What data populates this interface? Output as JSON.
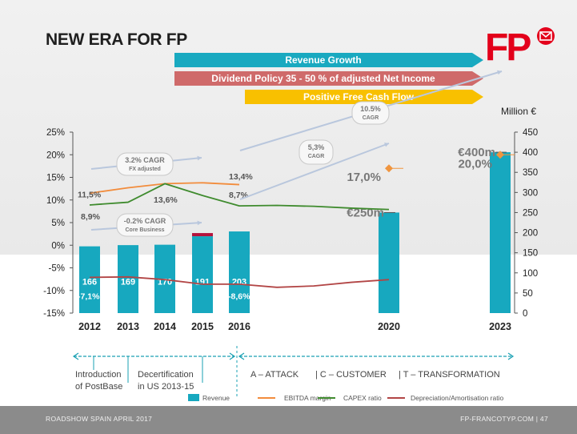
{
  "title": "NEW ERA FOR FP",
  "banners": {
    "revenue_growth": "Revenue Growth",
    "dividend_policy": "Dividend Policy 35 - 50 % of adjusted Net Income",
    "free_cash_flow": "Positive Free Cash Flow"
  },
  "logo": {
    "text": "FP",
    "color": "#e3001b"
  },
  "unit_label": "Million €",
  "chart_data": {
    "type": "bar",
    "categories": [
      "2012",
      "2013",
      "2014",
      "2015",
      "2016",
      "2020",
      "2023"
    ],
    "revenue": [
      166,
      169,
      170,
      191,
      203,
      250,
      400
    ],
    "revenue_labels": [
      "166",
      "169",
      "170",
      "191",
      "203",
      "€250m",
      "€400m"
    ],
    "revenue_2015_top_segment": 8,
    "y_right_range": [
      0,
      450
    ],
    "y_right_ticks": [
      "0",
      "50",
      "100",
      "150",
      "200",
      "250",
      "300",
      "350",
      "400",
      "450"
    ],
    "y_left_range": [
      -15,
      25
    ],
    "y_left_ticks": [
      "25%",
      "20%",
      "15%",
      "10%",
      "5%",
      "0%",
      "-5%",
      "-10%",
      "-15%"
    ],
    "ebitda_margin": {
      "x": [
        2012,
        2013,
        2014,
        2015,
        2016
      ],
      "values": [
        11.5,
        12.7,
        13.6,
        13.8,
        13.4
      ]
    },
    "capex_ratio": {
      "x": [
        2012,
        2013,
        2014,
        2015,
        2016,
        2017,
        2018,
        2019,
        2020
      ],
      "values": [
        8.9,
        9.5,
        13.6,
        11.0,
        8.7,
        8.8,
        8.6,
        8.2,
        7.9
      ]
    },
    "depreciation_ratio": {
      "x": [
        2012,
        2013,
        2014,
        2015,
        2016,
        2017,
        2018,
        2019,
        2020
      ],
      "values": [
        -7.1,
        -7.0,
        -7.6,
        -8.6,
        -8.6,
        -9.3,
        -9.0,
        -8.2,
        -7.6
      ]
    },
    "ebitda_targets": {
      "x": [
        2020,
        2023
      ],
      "values": [
        17.0,
        20.0
      ],
      "labels": [
        "17,0%",
        "20,0%"
      ]
    },
    "annotations": {
      "ebitda_2012": "11,5%",
      "ebitda_2016": "13,4%",
      "capex_2012": "8,9%",
      "capex_2014": "13,6%",
      "capex_2016": "8,7%",
      "depr_2012": "-7,1%",
      "depr_2016": "-8,6%"
    },
    "cagr_bubbles": [
      {
        "line1": "3.2% CAGR",
        "line2": "FX adjusted"
      },
      {
        "line1": "-0.2% CAGR",
        "line2": "Core Business"
      },
      {
        "line1": "5,3%",
        "line2": "CAGR"
      },
      {
        "line1": "10.5%",
        "line2": "CAGR"
      }
    ],
    "legend": [
      "Revenue",
      "EBITDA margin",
      "CAPEX ratio",
      "Depreciation/Amortisation ratio"
    ],
    "colors": {
      "revenue": "#17a8bf",
      "revenue_top": "#b5133c",
      "ebitda": "#f28c3c",
      "capex": "#3f8b2e",
      "depreciation": "#b24545",
      "target_marker": "#f0953f"
    }
  },
  "timeline": {
    "introduction": [
      "Introduction",
      "of PostBase"
    ],
    "decertification": [
      "Decertification",
      "in US 2013-15"
    ],
    "strategy": [
      "A – ATTACK",
      "|  C – CUSTOMER",
      "|  T – TRANSFORMATION"
    ]
  },
  "footer": {
    "left": "ROADSHOW SPAIN APRIL 2017",
    "right": "FP-FRANCOTYP.COM | 47"
  }
}
